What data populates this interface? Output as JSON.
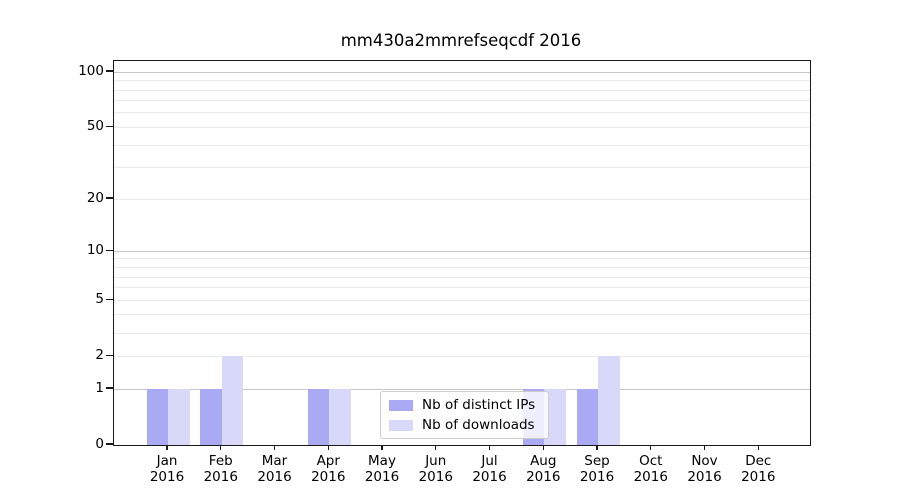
{
  "chart_data": {
    "type": "bar",
    "title": "mm430a2mmrefseqcdf 2016",
    "categories": [
      "Jan",
      "Feb",
      "Mar",
      "Apr",
      "May",
      "Jun",
      "Jul",
      "Aug",
      "Sep",
      "Oct",
      "Nov",
      "Dec"
    ],
    "category_year_label": "2016",
    "series": [
      {
        "name": "Nb of distinct IPs",
        "color": "#a9a9f4",
        "values": [
          1,
          1,
          0,
          1,
          0,
          0,
          0,
          1,
          1,
          0,
          0,
          0
        ]
      },
      {
        "name": "Nb of downloads",
        "color": "#d8d8f8",
        "values": [
          1,
          2,
          0,
          1,
          0,
          0,
          0,
          1,
          2,
          0,
          0,
          0
        ]
      }
    ],
    "yscale": "log1p",
    "ylim": [
      0,
      115
    ],
    "y_tick_labels": [
      0,
      1,
      2,
      5,
      10,
      20,
      50,
      100
    ],
    "y_major_gridlines": [
      1,
      10,
      100
    ],
    "y_minor_gridlines": [
      2,
      3,
      4,
      5,
      6,
      7,
      8,
      9,
      20,
      30,
      40,
      50,
      60,
      70,
      80,
      90
    ],
    "xlabel": "",
    "ylabel": "",
    "grid": "horizontal",
    "legend": {
      "entries": [
        "Nb of distinct IPs",
        "Nb of downloads"
      ],
      "position": "bottom-center"
    },
    "colors": {
      "bar_distinct_ips": "#a9a9f4",
      "bar_downloads": "#d8d8f8",
      "major_grid": "#c6c6c6",
      "minor_grid": "#ebebeb",
      "axis": "#1a1a1a",
      "text": "#000000",
      "legend_border": "#cccccc"
    }
  }
}
